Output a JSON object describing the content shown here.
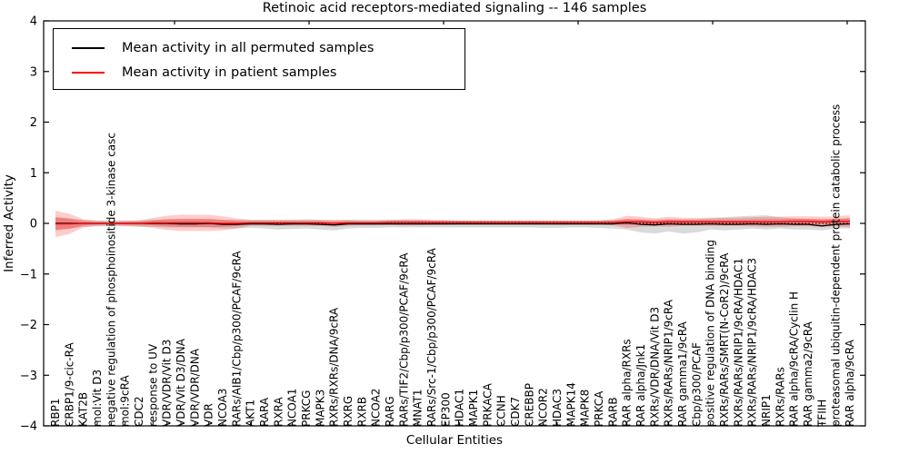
{
  "figure": {
    "title": "Retinoic acid receptors-mediated signaling -- 146 samples",
    "xlabel": "Cellular Entities",
    "ylabel": "Inferred Activity"
  },
  "legend": {
    "entries": [
      {
        "label": "Mean activity in all permuted samples",
        "color": "#000000"
      },
      {
        "label": "Mean activity in patient samples",
        "color": "#ff0000"
      }
    ]
  },
  "chart_data": {
    "type": "line",
    "title": "Retinoic acid receptors-mediated signaling -- 146 samples",
    "xlabel": "Cellular Entities",
    "ylabel": "Inferred Activity",
    "ylim": [
      -4,
      4
    ],
    "yticks": [
      4,
      3,
      2,
      1,
      0,
      -1,
      -2,
      -3,
      -4
    ],
    "ytick_labels": [
      "4",
      "3",
      "2",
      "1",
      "0",
      "−1",
      "−2",
      "−3",
      "−4"
    ],
    "grid": false,
    "legend_position": "upper left",
    "background": "#ffffff",
    "frame_color": "#000000",
    "zero_line": {
      "show": true,
      "style": "dotted",
      "color": "#000000",
      "value": 0
    },
    "categories": [
      "RBP1",
      "CRBP1/9-cic-RA",
      "KAT2B",
      "mol:Vit D3",
      "negative regulation of phosphoinositide 3-kinase casc",
      "mol:9cRA",
      "CDC2",
      "response to UV",
      "VDR/VDR/Vit D3",
      "VDR/Vit D3/DNA",
      "VDR/VDR/DNA",
      "VDR",
      "NCOA3",
      "RARs/AIB1/Cbp/p300/PCAF/9cRA",
      "AKT1",
      "RARA",
      "RXRA",
      "NCOA1",
      "PRKCG",
      "MAPK3",
      "RXRs/RXRs/DNA/9cRA",
      "RXRG",
      "RXRB",
      "NCOA2",
      "RARG",
      "RARs/TIF2/Cbp/p300/PCAF/9cRA",
      "MNAT1",
      "RARs/Src-1/Cbp/p300/PCAF/9cRA",
      "EP300",
      "HDAC1",
      "MAPK1",
      "PRKACA",
      "CCNH",
      "CDK7",
      "CREBBP",
      "NCOR2",
      "HDAC3",
      "MAPK14",
      "MAPK8",
      "PRKCA",
      "RARB",
      "RAR alpha/RXRs",
      "RAR alpha/Jnk1",
      "RXRs/VDR/DNA/Vit D3",
      "RXRs/RARs/NRIP1/9cRA",
      "RAR gamma1/9cRA",
      "Cbp/p300/PCAF",
      "positive regulation of DNA binding",
      "RXRs/RARs/SMRT(N-CoR2)/9cRA",
      "RXRs/RARs/NRIP1/9cRA/HDAC1",
      "RXRs/RARs/NRIP1/9cRA/HDAC3",
      "NRIP1",
      "RXRs/RARs",
      "RAR alpha/9cRA/Cyclin H",
      "RAR gamma2/9cRA",
      "TFIIH",
      "proteasomal ubiquitin-dependent protein catabolic process",
      "RAR alpha/9cRA"
    ],
    "series": [
      {
        "name": "Mean activity in all permuted samples",
        "color": "#000000",
        "values": [
          0,
          0,
          0,
          0,
          0,
          0,
          0,
          0,
          0,
          -0.01,
          -0.01,
          0,
          -0.02,
          -0.02,
          -0.01,
          -0.01,
          -0.02,
          -0.01,
          -0.01,
          -0.02,
          -0.03,
          -0.01,
          -0.01,
          -0.01,
          -0.01,
          -0.01,
          -0.01,
          -0.01,
          -0.01,
          -0.01,
          -0.01,
          -0.01,
          -0.01,
          -0.01,
          -0.01,
          -0.01,
          -0.01,
          -0.01,
          -0.01,
          -0.01,
          -0.01,
          0.01,
          -0.02,
          -0.03,
          -0.01,
          -0.02,
          -0.02,
          -0.01,
          -0.02,
          -0.02,
          -0.01,
          -0.02,
          -0.01,
          -0.02,
          -0.02,
          -0.05,
          -0.02,
          -0.01
        ]
      },
      {
        "name": "Mean activity in patient samples",
        "color": "#ff0000",
        "values": [
          -0.01,
          -0.01,
          0,
          0,
          0,
          0,
          0,
          0.01,
          0.01,
          0.01,
          0.01,
          0.01,
          0,
          0,
          0.01,
          0.01,
          0.01,
          0.01,
          0.01,
          0.01,
          0,
          0.01,
          0.01,
          0.01,
          0.02,
          0.02,
          0.02,
          0.02,
          0.02,
          0.02,
          0.02,
          0.02,
          0.02,
          0.02,
          0.02,
          0.02,
          0.02,
          0.02,
          0.02,
          0.02,
          0.02,
          0.03,
          0.03,
          0.02,
          0.03,
          0.03,
          0.03,
          0.03,
          0.03,
          0.03,
          0.03,
          0.03,
          0.03,
          0.04,
          0.04,
          0.03,
          0.04,
          0.04
        ],
        "std": [
          0.13,
          0.1,
          0.04,
          0.025,
          0.02,
          0.025,
          0.03,
          0.05,
          0.07,
          0.08,
          0.08,
          0.08,
          0.07,
          0.05,
          0.03,
          0.03,
          0.03,
          0.03,
          0.03,
          0.03,
          0.035,
          0.03,
          0.025,
          0.025,
          0.025,
          0.03,
          0.03,
          0.025,
          0.025,
          0.02,
          0.02,
          0.02,
          0.02,
          0.02,
          0.02,
          0.02,
          0.02,
          0.02,
          0.02,
          0.02,
          0.03,
          0.06,
          0.05,
          0.04,
          0.05,
          0.04,
          0.04,
          0.04,
          0.04,
          0.04,
          0.045,
          0.05,
          0.05,
          0.05,
          0.05,
          0.05,
          0.05,
          0.06
        ]
      }
    ],
    "bands": [
      {
        "name": "permuted-activity-range",
        "fill": "#adadad",
        "opacity": 0.45,
        "upper": [
          0.12,
          0.1,
          0.07,
          0.06,
          0.06,
          0.06,
          0.06,
          0.07,
          0.08,
          0.08,
          0.08,
          0.08,
          0.07,
          0.07,
          0.07,
          0.07,
          0.07,
          0.07,
          0.08,
          0.07,
          0.06,
          0.07,
          0.07,
          0.07,
          0.07,
          0.07,
          0.07,
          0.06,
          0.06,
          0.06,
          0.06,
          0.06,
          0.06,
          0.06,
          0.06,
          0.06,
          0.06,
          0.06,
          0.06,
          0.06,
          0.07,
          0.08,
          0.07,
          0.07,
          0.08,
          0.08,
          0.08,
          0.1,
          0.12,
          0.14,
          0.15,
          0.16,
          0.12,
          0.1,
          0.09,
          0.08,
          0.09,
          0.1
        ],
        "lower": [
          -0.12,
          -0.1,
          -0.07,
          -0.06,
          -0.06,
          -0.06,
          -0.07,
          -0.07,
          -0.08,
          -0.08,
          -0.08,
          -0.08,
          -0.1,
          -0.1,
          -0.09,
          -0.1,
          -0.12,
          -0.11,
          -0.1,
          -0.12,
          -0.14,
          -0.1,
          -0.09,
          -0.09,
          -0.08,
          -0.08,
          -0.08,
          -0.08,
          -0.08,
          -0.08,
          -0.08,
          -0.08,
          -0.08,
          -0.08,
          -0.08,
          -0.09,
          -0.09,
          -0.08,
          -0.08,
          -0.09,
          -0.1,
          -0.12,
          -0.18,
          -0.2,
          -0.16,
          -0.2,
          -0.18,
          -0.12,
          -0.14,
          -0.12,
          -0.1,
          -0.12,
          -0.1,
          -0.12,
          -0.12,
          -0.14,
          -0.1,
          -0.1
        ]
      },
      {
        "name": "patient-mean-plus-minus-2-std",
        "source_series": 1,
        "k": 2,
        "fill": "#ff0000",
        "opacity": 0.2
      },
      {
        "name": "patient-mean-plus-minus-1-std",
        "source_series": 1,
        "k": 1,
        "fill": "#ff0000",
        "opacity": 0.25
      }
    ]
  }
}
